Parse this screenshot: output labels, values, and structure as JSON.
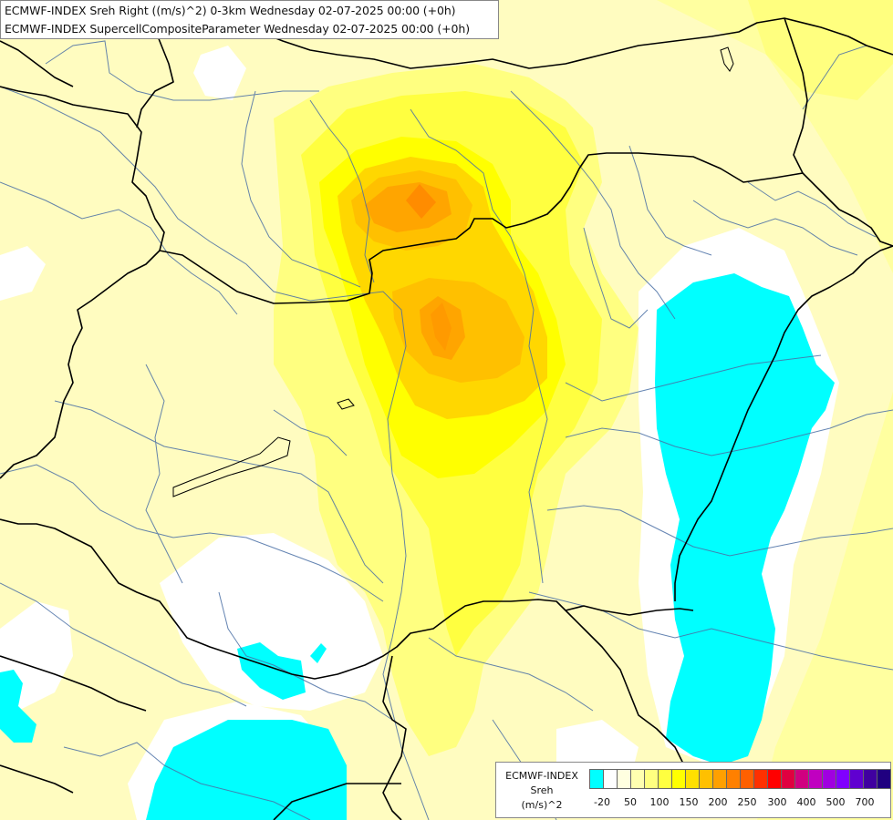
{
  "header": {
    "title_line1": "ECMWF-INDEX Sreh Right ((m/s)^2) 0-3km Wednesday 02-07-2025 00:00 (+0h)",
    "title_line2": "ECMWF-INDEX SupercellCompositeParameter Wednesday 02-07-2025 00:00 (+0h)"
  },
  "legend": {
    "title_line1": "ECMWF-INDEX",
    "title_line2": "Sreh",
    "title_line3": "(m/s)^2",
    "colors": [
      "#00ffff",
      "#ffffff",
      "#ffffe0",
      "#ffffb0",
      "#ffff80",
      "#ffff40",
      "#ffff00",
      "#ffe000",
      "#ffc000",
      "#ffa000",
      "#ff8000",
      "#ff6000",
      "#ff3000",
      "#ff0000",
      "#e00040",
      "#d00080",
      "#c000c0",
      "#a000e0",
      "#8000ff",
      "#6000d0",
      "#4000a0",
      "#200080"
    ],
    "tick_labels": [
      "-20",
      "50",
      "100",
      "150",
      "200",
      "250",
      "300",
      "400",
      "500",
      "700"
    ]
  },
  "map_colors": {
    "background": "#fffcc0",
    "cyan": "#00ffff",
    "white": "#ffffff",
    "light_yellow": "#ffff80",
    "yellow": "#ffff00",
    "gold": "#ffd700",
    "orange_light": "#ffc000",
    "orange": "#ffa500",
    "dark_orange": "#ff8c00",
    "border_line": "#000000",
    "river_line": "#4a6fa5"
  }
}
